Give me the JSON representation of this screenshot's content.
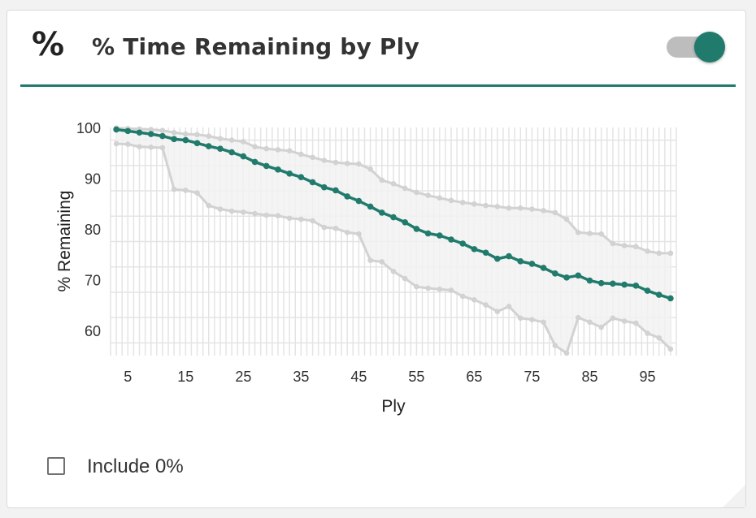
{
  "header": {
    "icon": "percent-icon",
    "icon_glyph": "%",
    "title": "% Time Remaining by Ply",
    "toggle_on": true
  },
  "colors": {
    "accent": "#217b6c",
    "band": "#d2d2d2",
    "band_fill": "#f2f2f2",
    "grid": "#e4e4e4"
  },
  "include_zero": {
    "label": "Include 0%",
    "checked": false
  },
  "chart_data": {
    "type": "line",
    "title": "",
    "xlabel": "Ply",
    "ylabel": "% Remaining",
    "xlim": [
      2,
      100
    ],
    "ylim": [
      55,
      100
    ],
    "x_ticks": [
      5,
      15,
      25,
      35,
      45,
      55,
      65,
      75,
      85,
      95
    ],
    "y_ticks": [
      60,
      70,
      80,
      90,
      100
    ],
    "grid": true,
    "legend": "none",
    "x": [
      3,
      5,
      7,
      9,
      11,
      13,
      15,
      17,
      19,
      21,
      23,
      25,
      27,
      29,
      31,
      33,
      35,
      37,
      39,
      41,
      43,
      45,
      47,
      49,
      51,
      53,
      55,
      57,
      59,
      61,
      63,
      65,
      67,
      69,
      71,
      73,
      75,
      77,
      79,
      81,
      83,
      85,
      87,
      89,
      91,
      93,
      95,
      97,
      99
    ],
    "series": [
      {
        "role": "upper",
        "color": "#d2d2d2",
        "values": [
          99.9,
          99.8,
          99.7,
          99.6,
          99.4,
          99.0,
          98.7,
          98.6,
          98.3,
          97.8,
          97.5,
          97.2,
          96.2,
          95.8,
          95.6,
          95.4,
          94.7,
          94.1,
          93.5,
          93.1,
          92.9,
          92.8,
          91.8,
          89.6,
          88.9,
          88.0,
          87.2,
          86.6,
          86.1,
          85.6,
          85.2,
          84.9,
          84.6,
          84.4,
          84.1,
          84.1,
          83.9,
          83.6,
          83.2,
          81.9,
          79.3,
          79.1,
          79.0,
          77.1,
          76.7,
          76.5,
          75.6,
          75.2,
          75.2
        ]
      },
      {
        "role": "median",
        "color": "#217b6c",
        "values": [
          99.6,
          99.3,
          99.0,
          98.7,
          98.3,
          97.7,
          97.5,
          96.9,
          96.3,
          95.8,
          95.1,
          94.3,
          93.2,
          92.4,
          91.7,
          90.9,
          90.2,
          89.2,
          88.2,
          87.6,
          86.4,
          85.5,
          84.4,
          83.2,
          82.3,
          81.3,
          80.0,
          79.1,
          78.7,
          77.9,
          77.1,
          76.0,
          75.3,
          74.1,
          74.6,
          73.6,
          73.1,
          72.3,
          71.2,
          70.4,
          70.8,
          69.8,
          69.3,
          69.2,
          69.0,
          68.8,
          67.8,
          67.0,
          66.3
        ]
      },
      {
        "role": "lower",
        "color": "#d2d2d2",
        "values": [
          96.8,
          96.7,
          96.2,
          96.1,
          96.0,
          87.8,
          87.6,
          87.1,
          84.6,
          83.9,
          83.5,
          83.3,
          83.0,
          82.7,
          82.6,
          82.1,
          81.9,
          81.6,
          80.3,
          80.1,
          79.3,
          79.0,
          73.8,
          73.5,
          71.6,
          70.2,
          68.6,
          68.3,
          68.1,
          67.9,
          66.7,
          66.0,
          65.0,
          63.7,
          64.7,
          62.4,
          62.1,
          61.6,
          57.0,
          55.5,
          62.5,
          61.6,
          60.6,
          62.4,
          61.8,
          61.4,
          59.4,
          58.5,
          56.3
        ]
      }
    ]
  }
}
